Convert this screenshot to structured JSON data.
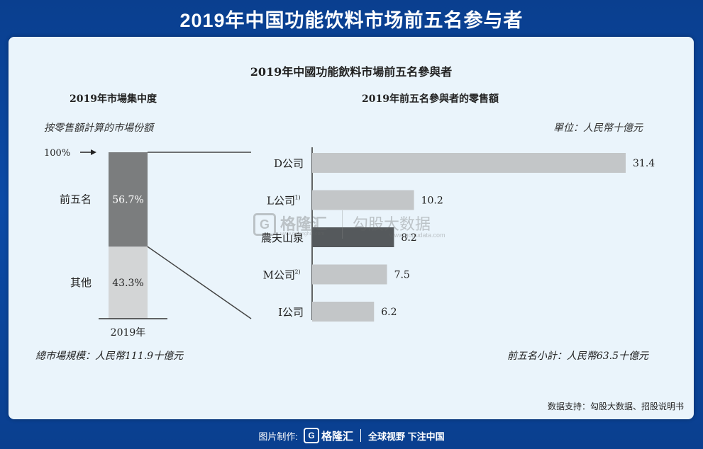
{
  "header": {
    "title": "2019年中国功能饮料市场前五名参与者"
  },
  "card": {
    "main_title": "2019年中國功能飲料市場前五名參與者",
    "left_title": "2019年市場集中度",
    "left_subtitle": "按零售額計算的市場份額",
    "left_footnote": "總市場規模：人民幣111.9十億元",
    "right_title": "2019年前五名參與者的零售額",
    "right_unit": "單位：人民幣十億元",
    "right_footnote": "前五名小計：人民幣63.5十億元",
    "source": "数据支持：勾股大数据、招股说明书"
  },
  "chart_data": [
    {
      "type": "bar",
      "orientation": "vertical-stacked",
      "categories": [
        "2019年"
      ],
      "top_label": "100%",
      "series": [
        {
          "name": "其他",
          "values": [
            43.3
          ],
          "label": "43.3%",
          "color": "#d3d5d6"
        },
        {
          "name": "前五名",
          "values": [
            56.7
          ],
          "label": "56.7%",
          "color": "#7b7d7e"
        }
      ],
      "ylim": [
        0,
        100
      ]
    },
    {
      "type": "bar",
      "orientation": "horizontal",
      "categories": [
        "D公司",
        "L公司",
        "農夫山泉",
        "M公司",
        "I公司"
      ],
      "category_notes": [
        "",
        "(1)",
        "",
        "(2)",
        ""
      ],
      "values": [
        31.4,
        10.2,
        8.2,
        7.5,
        6.2
      ],
      "value_labels": [
        "31.4",
        "10.2",
        "8.2",
        "7.5",
        "6.2"
      ],
      "colors": [
        "#c3c6c8",
        "#c3c6c8",
        "#55595c",
        "#c3c6c8",
        "#c3c6c8"
      ],
      "xlim": [
        0,
        31.4
      ]
    }
  ],
  "watermark": {
    "brand": "格隆汇",
    "site1": "www.gelonghui.com",
    "brand2": "勾股大数据",
    "site2": "www.gogudata.com"
  },
  "footer": {
    "made_by": "图片制作:",
    "logo_letter": "G",
    "logo_name": "格隆汇",
    "slogan": "全球视野 下注中国"
  },
  "colors": {
    "background": "#0b4aa6",
    "card": "#eaf4fb",
    "highlight_bar": "#55595c",
    "plain_bar": "#c3c6c8"
  }
}
